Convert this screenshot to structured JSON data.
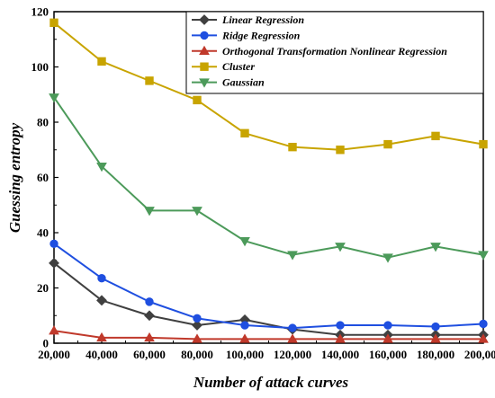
{
  "chart_data": {
    "type": "line",
    "title": "",
    "xlabel": "Number of attack curves",
    "ylabel": "Guessing entropy",
    "x": [
      20000,
      40000,
      60000,
      80000,
      100000,
      120000,
      140000,
      160000,
      180000,
      200000
    ],
    "x_tick_labels": [
      "20,000",
      "40,000",
      "60,000",
      "80,000",
      "100,000",
      "120,000",
      "140,000",
      "160,000",
      "180,000",
      "200,000"
    ],
    "xlim": [
      20000,
      200000
    ],
    "ylim": [
      0,
      120
    ],
    "y_ticks": [
      0,
      20,
      40,
      60,
      80,
      100,
      120
    ],
    "grid": false,
    "legend_position": "top-right",
    "series": [
      {
        "name": "Linear Regression",
        "color": "#404040",
        "marker": "diamond",
        "values": [
          29,
          15.5,
          10,
          6.5,
          8.5,
          5,
          3,
          3,
          3,
          3
        ]
      },
      {
        "name": "Ridge Regression",
        "color": "#1f4fe0",
        "marker": "circle",
        "values": [
          36,
          23.5,
          15,
          9,
          6.5,
          5.5,
          6.5,
          6.5,
          6,
          7
        ]
      },
      {
        "name": "Orthogonal Transformation Nonlinear Regression",
        "color": "#c0392b",
        "marker": "triangle-up",
        "values": [
          4.5,
          2,
          2,
          1.5,
          1.5,
          1.5,
          1.5,
          1.5,
          1.5,
          1.5
        ]
      },
      {
        "name": "Cluster",
        "color": "#c8a400",
        "marker": "square",
        "values": [
          116,
          102,
          95,
          88,
          76,
          71,
          70,
          72,
          75,
          72
        ]
      },
      {
        "name": "Gaussian",
        "color": "#4c9a5a",
        "marker": "triangle-down",
        "values": [
          89,
          64,
          48,
          48,
          37,
          32,
          35,
          31,
          35,
          32
        ]
      }
    ]
  }
}
